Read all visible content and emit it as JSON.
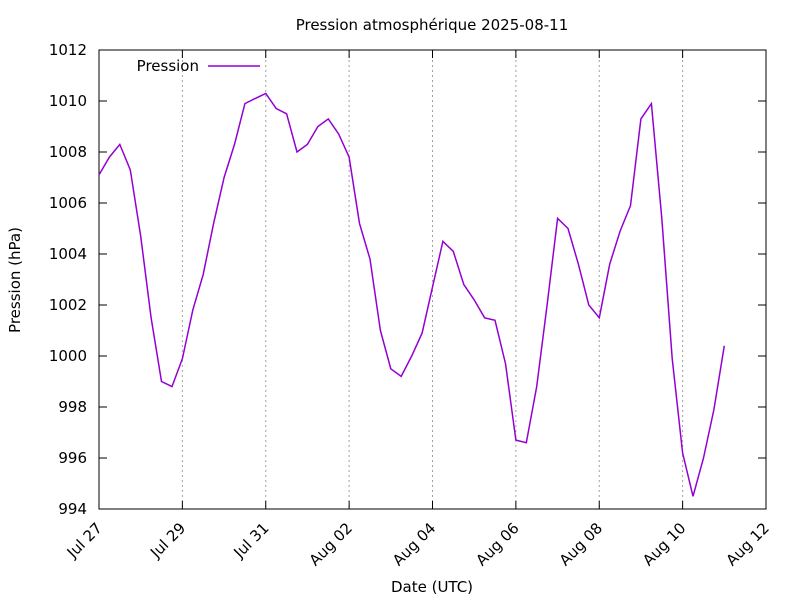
{
  "chart_data": {
    "type": "line",
    "title": "Pression atmosphérique 2025-08-11",
    "xlabel": "Date (UTC)",
    "ylabel": "Pression (hPa)",
    "x": [
      "2025-07-27 00:00",
      "2025-07-27 06:00",
      "2025-07-27 12:00",
      "2025-07-27 18:00",
      "2025-07-28 00:00",
      "2025-07-28 06:00",
      "2025-07-28 12:00",
      "2025-07-28 18:00",
      "2025-07-29 00:00",
      "2025-07-29 06:00",
      "2025-07-29 12:00",
      "2025-07-29 18:00",
      "2025-07-30 00:00",
      "2025-07-30 06:00",
      "2025-07-30 12:00",
      "2025-07-30 18:00",
      "2025-07-31 00:00",
      "2025-07-31 06:00",
      "2025-07-31 12:00",
      "2025-07-31 18:00",
      "2025-08-01 00:00",
      "2025-08-01 06:00",
      "2025-08-01 12:00",
      "2025-08-01 18:00",
      "2025-08-02 00:00",
      "2025-08-02 06:00",
      "2025-08-02 12:00",
      "2025-08-02 18:00",
      "2025-08-03 00:00",
      "2025-08-03 06:00",
      "2025-08-03 12:00",
      "2025-08-03 18:00",
      "2025-08-04 00:00",
      "2025-08-04 06:00",
      "2025-08-04 12:00",
      "2025-08-04 18:00",
      "2025-08-05 00:00",
      "2025-08-05 06:00",
      "2025-08-05 12:00",
      "2025-08-05 18:00",
      "2025-08-06 00:00",
      "2025-08-06 06:00",
      "2025-08-06 12:00",
      "2025-08-06 18:00",
      "2025-08-07 00:00",
      "2025-08-07 06:00",
      "2025-08-07 12:00",
      "2025-08-07 18:00",
      "2025-08-08 00:00",
      "2025-08-08 06:00",
      "2025-08-08 12:00",
      "2025-08-08 18:00",
      "2025-08-09 00:00",
      "2025-08-09 06:00",
      "2025-08-09 12:00",
      "2025-08-09 18:00",
      "2025-08-10 00:00",
      "2025-08-10 06:00",
      "2025-08-10 12:00",
      "2025-08-10 18:00",
      "2025-08-11 00:00"
    ],
    "series": [
      {
        "name": "Pression",
        "color": "#9400d3",
        "values": [
          1007.1,
          1007.8,
          1008.3,
          1007.3,
          1004.7,
          1001.5,
          999.0,
          998.8,
          999.9,
          1001.8,
          1003.2,
          1005.2,
          1007.0,
          1008.3,
          1009.9,
          1010.1,
          1010.3,
          1009.7,
          1009.5,
          1008.0,
          1008.3,
          1009.0,
          1009.3,
          1008.7,
          1007.8,
          1005.2,
          1003.8,
          1001.0,
          999.5,
          999.2,
          1000.0,
          1000.9,
          1002.7,
          1004.5,
          1004.1,
          1002.8,
          1002.2,
          1001.5,
          1001.4,
          999.7,
          996.7,
          996.6,
          998.8,
          1002.0,
          1005.4,
          1005.0,
          1003.6,
          1002.0,
          1001.5,
          1003.6,
          1004.9,
          1005.9,
          1009.3,
          1009.9,
          1005.4,
          999.9,
          996.2,
          994.5,
          996.0,
          997.9,
          1000.4
        ]
      }
    ],
    "xlim": [
      "2025-07-27 00:00",
      "2025-08-12 00:00"
    ],
    "xticks": [
      {
        "value": "2025-07-27 00:00",
        "label": "Jul 27"
      },
      {
        "value": "2025-07-29 00:00",
        "label": "Jul 29"
      },
      {
        "value": "2025-07-31 00:00",
        "label": "Jul 31"
      },
      {
        "value": "2025-08-02 00:00",
        "label": "Aug 02"
      },
      {
        "value": "2025-08-04 00:00",
        "label": "Aug 04"
      },
      {
        "value": "2025-08-06 00:00",
        "label": "Aug 06"
      },
      {
        "value": "2025-08-08 00:00",
        "label": "Aug 08"
      },
      {
        "value": "2025-08-10 00:00",
        "label": "Aug 10"
      },
      {
        "value": "2025-08-12 00:00",
        "label": "Aug 12"
      }
    ],
    "ylim": [
      994,
      1012
    ],
    "yticks": [
      994,
      996,
      998,
      1000,
      1002,
      1004,
      1006,
      1008,
      1010,
      1012
    ],
    "grid": "x",
    "legend": "top-left"
  }
}
